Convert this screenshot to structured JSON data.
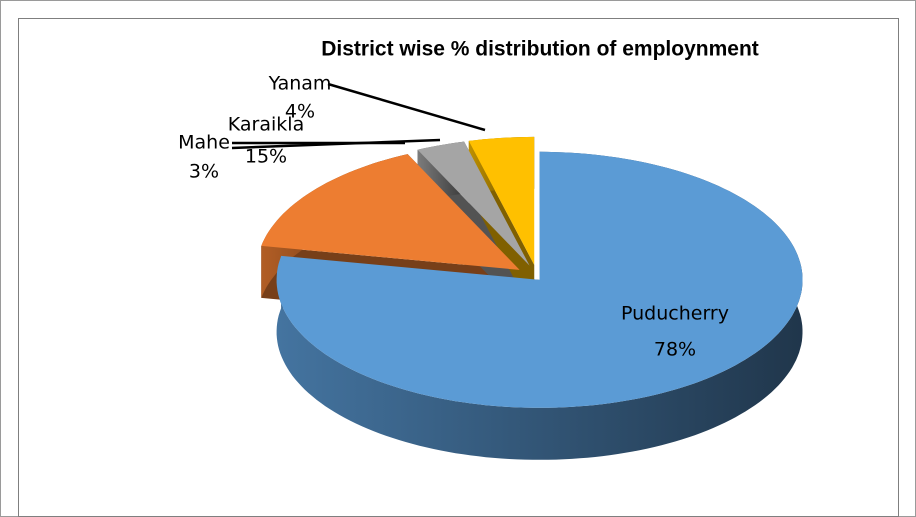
{
  "chart_data": {
    "type": "pie",
    "title": "District wise % distribution of employnment",
    "categories": [
      "Puducherry",
      "Karaikla",
      "Mahe",
      "Yanam"
    ],
    "values": [
      78,
      15,
      3,
      4
    ],
    "value_labels": [
      "78%",
      "15%",
      "3%",
      "4%"
    ],
    "colors": [
      "#5b9bd5",
      "#ed7d31",
      "#a5a5a5",
      "#ffc000"
    ]
  }
}
